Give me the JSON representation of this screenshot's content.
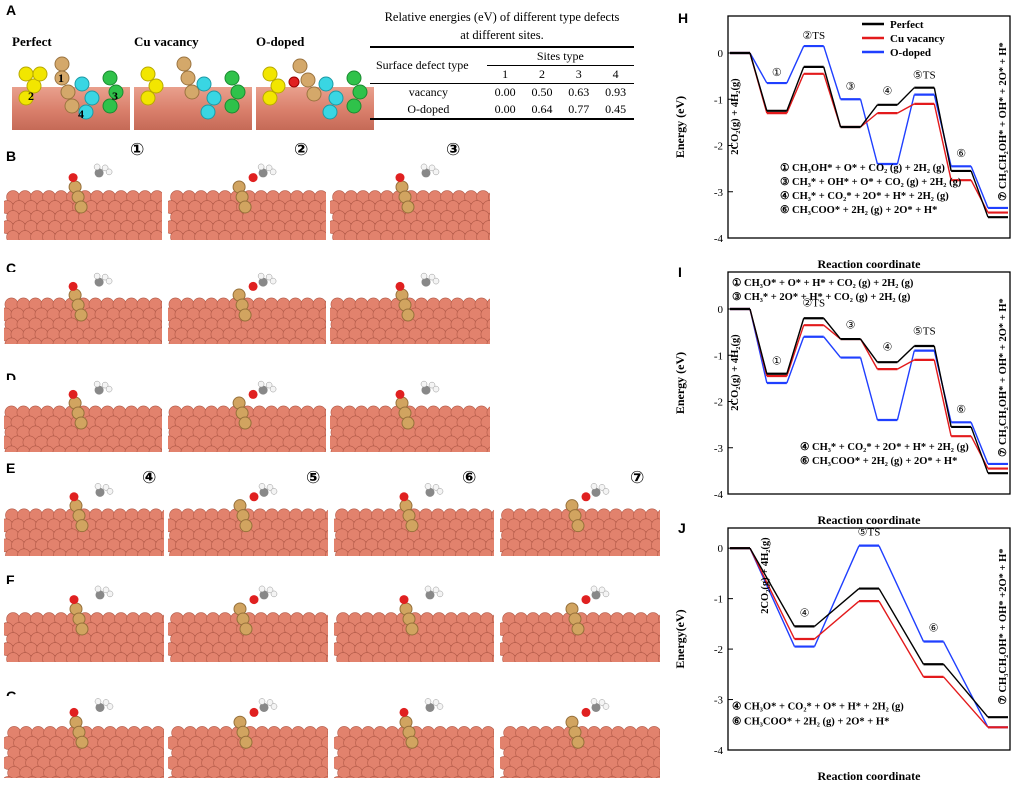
{
  "panel_letters": {
    "A": "A",
    "B": "B",
    "C": "C",
    "D": "D",
    "E": "E",
    "F": "F",
    "G": "G",
    "H": "H",
    "I": "I",
    "J": "J"
  },
  "panelA": {
    "labels": {
      "perfect": "Perfect",
      "vacancy": "Cu vacancy",
      "odoped": "O-doped"
    },
    "site_nums": [
      "1",
      "2",
      "3",
      "4"
    ]
  },
  "table": {
    "title_line1": "Relative energies (eV) of different type defects",
    "title_line2": "at different sites.",
    "col_header": "Sites type",
    "row_header": "Surface defect type",
    "sites": [
      "1",
      "2",
      "3",
      "4"
    ],
    "rows": [
      {
        "name": "vacancy",
        "values": [
          "0.00",
          "0.50",
          "0.63",
          "0.93"
        ]
      },
      {
        "name": "O-doped",
        "values": [
          "0.00",
          "0.64",
          "0.77",
          "0.45"
        ]
      }
    ]
  },
  "step_markers": {
    "b1": "①",
    "b2": "②",
    "b3": "③",
    "e4": "④",
    "e5": "⑤",
    "e6": "⑥",
    "e7": "⑦"
  },
  "chart_data": [
    {
      "id": "H",
      "type": "line",
      "ylabel": "Energy (eV)",
      "xlabel": "Reaction coordinate",
      "ylim": [
        -4,
        0.8
      ],
      "yticks": [
        "0",
        "-1",
        "-2",
        "-3",
        "-4"
      ],
      "legend": [
        "Perfect",
        "Cu vacancy",
        "O-doped"
      ],
      "colors": [
        "#000000",
        "#e31a1c",
        "#1f3fff"
      ],
      "states": [
        "2CO2(g)+4H2(g)",
        "①",
        "②TS",
        "③",
        "④",
        "⑤TS",
        "⑥",
        "⑦"
      ],
      "series": [
        {
          "name": "Perfect",
          "values": [
            0,
            -1.25,
            -0.3,
            -1.6,
            -1.12,
            -0.75,
            -2.55,
            -3.55
          ]
        },
        {
          "name": "Cu vacancy",
          "values": [
            0,
            -1.3,
            -0.45,
            -1.6,
            -1.3,
            -1.1,
            -2.75,
            -3.45
          ]
        },
        {
          "name": "O-doped",
          "values": [
            0,
            -0.65,
            0.15,
            -1.0,
            -2.4,
            -0.9,
            -2.45,
            -3.35
          ]
        }
      ],
      "state_labels": {
        "s0": "2CO",
        "s0b": "(g) + 4H",
        "s0c": "(g)",
        "s1": "①",
        "s2": "②TS",
        "s3": "③",
        "s4": "④",
        "s5": "⑤TS",
        "s6": "⑥",
        "s7": "⑦ CH",
        "s7b": "CH OH* + OH* + 2O* + H*"
      },
      "notes": [
        "① CH₃OH* + O* + CO₂ (g) + 2H₂ (g)",
        "③ CH₃* + OH* + O* + CO₂ (g) + 2H₂ (g)",
        "④ CH₃* + CO₂* + 2O* + H* + 2H₂ (g)",
        "⑥ CH₃COO* + 2H₂ (g) + 2O* + H*"
      ],
      "side_label": "⑦ CH₃CH₂OH* + OH* + 2O* + H*",
      "start_label": "2CO₂(g) + 4H₂(g)"
    },
    {
      "id": "I",
      "type": "line",
      "ylabel": "Energy (eV)",
      "xlabel": "Reaction coordinate",
      "ylim": [
        -4,
        0.8
      ],
      "yticks": [
        "0",
        "-1",
        "-2",
        "-3",
        "-4"
      ],
      "legend": [
        "Perfect",
        "Cu vacancy",
        "O-doped"
      ],
      "colors": [
        "#000000",
        "#e31a1c",
        "#1f3fff"
      ],
      "states": [
        "2CO2(g)+4H2(g)",
        "①",
        "②TS",
        "③",
        "④",
        "⑤TS",
        "⑥",
        "⑦"
      ],
      "series": [
        {
          "name": "Perfect",
          "values": [
            0,
            -1.4,
            -0.2,
            -0.65,
            -1.15,
            -0.8,
            -2.55,
            -3.55
          ]
        },
        {
          "name": "Cu vacancy",
          "values": [
            0,
            -1.45,
            -0.35,
            -0.65,
            -1.3,
            -1.1,
            -2.75,
            -3.45
          ]
        },
        {
          "name": "O-doped",
          "values": [
            0,
            -1.6,
            -0.6,
            -1.05,
            -2.4,
            -0.9,
            -2.45,
            -3.35
          ]
        }
      ],
      "notes_top": [
        "① CH₃O* + O* + H* + CO₂ (g) + 2H₂ (g)",
        "③ CH₃* + 2O* + H* + CO₂ (g) + 2H₂ (g)"
      ],
      "notes": [
        "④ CH₃* + CO₂* + 2O* + H* + 2H₂ (g)",
        "⑥ CH₃COO* + 2H₂ (g) + 2O* + H*"
      ],
      "side_label": "⑦ CH₃CH₂OH* + OH* + 2O* + H*",
      "start_label": "2CO₂(g) + 4H₂(g)",
      "marks": {
        "m1": "①",
        "m2": "②TS",
        "m3": "③",
        "m4": "④",
        "m5": "⑤TS",
        "m6": "⑥"
      }
    },
    {
      "id": "J",
      "type": "line",
      "ylabel": "Energy(eV)",
      "xlabel": "Reaction coordinate",
      "ylim": [
        -4,
        0.4
      ],
      "yticks": [
        "0",
        "-1",
        "-2",
        "-3",
        "-4"
      ],
      "colors": [
        "#000000",
        "#e31a1c",
        "#1f3fff"
      ],
      "states": [
        "2CO2(g)+4H2(g)",
        "④",
        "⑤TS",
        "⑥",
        "⑦"
      ],
      "series": [
        {
          "name": "Perfect",
          "values": [
            0,
            -1.55,
            -0.8,
            -2.3,
            -3.35
          ]
        },
        {
          "name": "Cu vacancy",
          "values": [
            0,
            -1.8,
            -1.05,
            -2.55,
            -3.55
          ]
        },
        {
          "name": "O-doped",
          "values": [
            0,
            -1.95,
            0.05,
            -1.85,
            -3.55
          ]
        }
      ],
      "notes": [
        "④ CH₃O* + CO₂* + O* + H* + 2H₂ (g)",
        "⑥ CH₃COO* + 2H₂ (g) + 2O* + H*"
      ],
      "side_label": "⑦ CH₃CH₂OH* + OH* +2O* + H*",
      "start_label": "2CO₂(g) + 4H₂(g)",
      "marks": {
        "m4": "④",
        "m5": "⑤TS",
        "m6": "⑥"
      }
    }
  ]
}
